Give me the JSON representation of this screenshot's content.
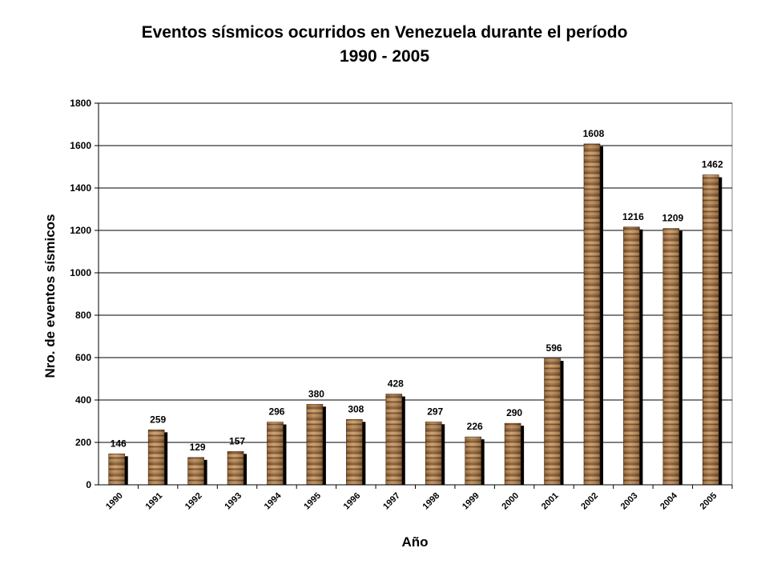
{
  "chart_data": {
    "type": "bar",
    "title": "Eventos sísmicos ocurridos en Venezuela durante el período",
    "subtitle": "1990 - 2005",
    "xlabel": "Año",
    "ylabel": "Nro. de eventos sísmicos",
    "categories": [
      "1990",
      "1991",
      "1992",
      "1993",
      "1994",
      "1995",
      "1996",
      "1997",
      "1998",
      "1999",
      "2000",
      "2001",
      "2002",
      "2003",
      "2004",
      "2005"
    ],
    "values": [
      146,
      259,
      129,
      157,
      296,
      380,
      308,
      428,
      297,
      226,
      290,
      596,
      1608,
      1216,
      1209,
      1462
    ],
    "data_labels": [
      "146",
      "259",
      "129",
      "157",
      "296",
      "380",
      "308",
      "428",
      "297",
      "226",
      "290",
      "596",
      "1608",
      "1216",
      "1209",
      "1462"
    ],
    "ylim": [
      0,
      1800
    ],
    "yticks": [
      0,
      200,
      400,
      600,
      800,
      1000,
      1200,
      1400,
      1600,
      1800
    ],
    "grid": true,
    "legend": "none",
    "colors": {
      "bar": "#9a6a3a",
      "bar_light": "#c89a66",
      "bar_dark": "#5e3a1a",
      "shadow": "#000000",
      "grid": "#000000"
    }
  }
}
